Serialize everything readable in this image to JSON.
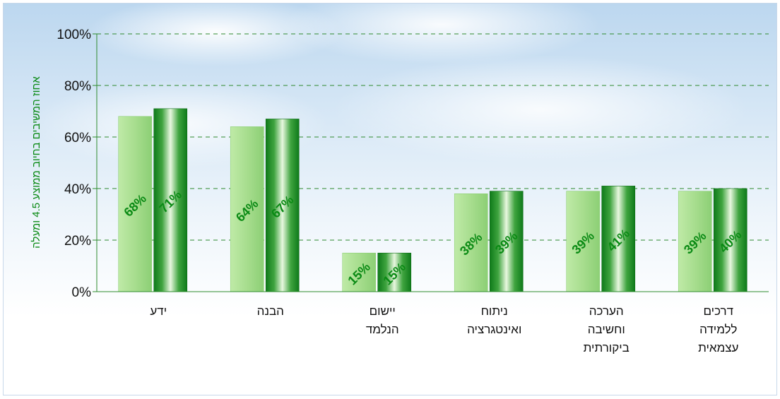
{
  "chart_data": {
    "type": "bar",
    "ylabel": "אחוז המשיבים בחיוב ממוצע  4.5  ומעלה",
    "ylim": [
      0,
      100
    ],
    "yticks": [
      "0%",
      "20%",
      "40%",
      "60%",
      "80%",
      "100%"
    ],
    "grid": true,
    "categories": [
      [
        "ידע"
      ],
      [
        "הבנה"
      ],
      [
        "יישום",
        "הנלמד"
      ],
      [
        "ניתוח",
        "ואינטגרציה"
      ],
      [
        "הערכה",
        "וחשיבה",
        "ביקורתית"
      ],
      [
        "דרכים",
        "ללמידה",
        "עצמאית"
      ]
    ],
    "series": [
      {
        "values": [
          68,
          64,
          15,
          38,
          39,
          39
        ],
        "labels": [
          "68%",
          "64%",
          "15%",
          "38%",
          "39%",
          "39%"
        ]
      },
      {
        "values": [
          71,
          67,
          15,
          39,
          41,
          40
        ],
        "labels": [
          "71%",
          "67%",
          "15%",
          "39%",
          "41%",
          "40%"
        ]
      }
    ],
    "colors": {
      "series1": "#a6df8e",
      "series2": "#2f9a2f",
      "grid": "#2f8a2f",
      "axis": "#2e8b2e",
      "label": "#0a8a14"
    }
  }
}
